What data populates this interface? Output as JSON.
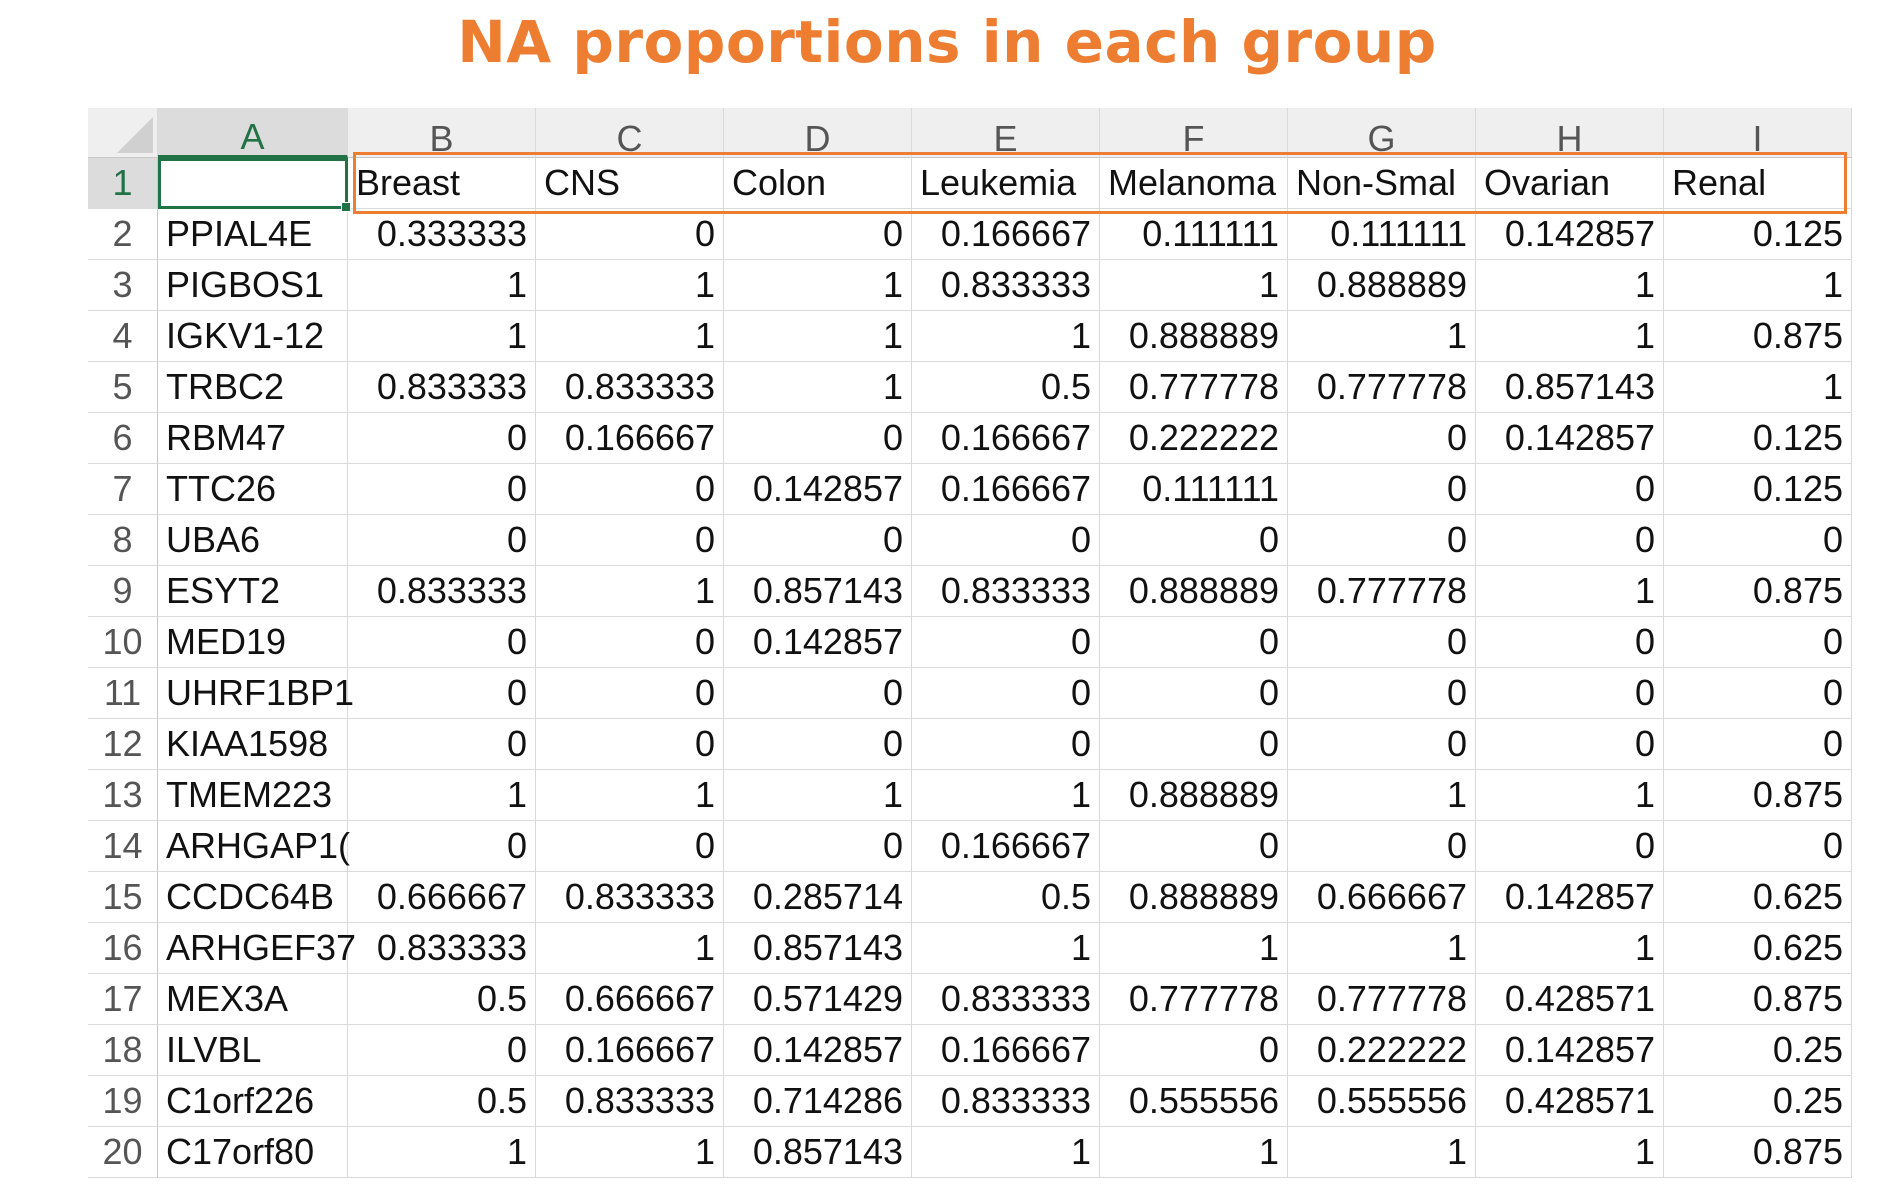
{
  "title": "NA proportions in each group",
  "accent_color": "#ed7d31",
  "selection_color": "#217346",
  "sheet": {
    "column_letters": [
      "A",
      "B",
      "C",
      "D",
      "E",
      "F",
      "G",
      "H",
      "I"
    ],
    "selected_column": "A",
    "active_cell": "A1",
    "row_numbers": [
      "1",
      "2",
      "3",
      "4",
      "5",
      "6",
      "7",
      "8",
      "9",
      "10",
      "11",
      "12",
      "13",
      "14",
      "15",
      "16",
      "17",
      "18",
      "19",
      "20"
    ],
    "header": [
      "",
      "Breast",
      "CNS",
      "Colon",
      "Leukemia",
      "Melanoma",
      "Non-Smal",
      "Ovarian",
      "Renal"
    ],
    "rows": [
      [
        "PPIAL4E",
        "0.333333",
        "0",
        "0",
        "0.166667",
        "0.111111",
        "0.111111",
        "0.142857",
        "0.125"
      ],
      [
        "PIGBOS1",
        "1",
        "1",
        "1",
        "0.833333",
        "1",
        "0.888889",
        "1",
        "1"
      ],
      [
        "IGKV1-12",
        "1",
        "1",
        "1",
        "1",
        "0.888889",
        "1",
        "1",
        "0.875"
      ],
      [
        "TRBC2",
        "0.833333",
        "0.833333",
        "1",
        "0.5",
        "0.777778",
        "0.777778",
        "0.857143",
        "1"
      ],
      [
        "RBM47",
        "0",
        "0.166667",
        "0",
        "0.166667",
        "0.222222",
        "0",
        "0.142857",
        "0.125"
      ],
      [
        "TTC26",
        "0",
        "0",
        "0.142857",
        "0.166667",
        "0.111111",
        "0",
        "0",
        "0.125"
      ],
      [
        "UBA6",
        "0",
        "0",
        "0",
        "0",
        "0",
        "0",
        "0",
        "0"
      ],
      [
        "ESYT2",
        "0.833333",
        "1",
        "0.857143",
        "0.833333",
        "0.888889",
        "0.777778",
        "1",
        "0.875"
      ],
      [
        "MED19",
        "0",
        "0",
        "0.142857",
        "0",
        "0",
        "0",
        "0",
        "0"
      ],
      [
        "UHRF1BP1",
        "0",
        "0",
        "0",
        "0",
        "0",
        "0",
        "0",
        "0"
      ],
      [
        "KIAA1598",
        "0",
        "0",
        "0",
        "0",
        "0",
        "0",
        "0",
        "0"
      ],
      [
        "TMEM223",
        "1",
        "1",
        "1",
        "1",
        "0.888889",
        "1",
        "1",
        "0.875"
      ],
      [
        "ARHGAP1(",
        "0",
        "0",
        "0",
        "0.166667",
        "0",
        "0",
        "0",
        "0"
      ],
      [
        "CCDC64B",
        "0.666667",
        "0.833333",
        "0.285714",
        "0.5",
        "0.888889",
        "0.666667",
        "0.142857",
        "0.625"
      ],
      [
        "ARHGEF37",
        "0.833333",
        "1",
        "0.857143",
        "1",
        "1",
        "1",
        "1",
        "0.625"
      ],
      [
        "MEX3A",
        "0.5",
        "0.666667",
        "0.571429",
        "0.833333",
        "0.777778",
        "0.777778",
        "0.428571",
        "0.875"
      ],
      [
        "ILVBL",
        "0",
        "0.166667",
        "0.142857",
        "0.166667",
        "0",
        "0.222222",
        "0.142857",
        "0.25"
      ],
      [
        "C1orf226",
        "0.5",
        "0.833333",
        "0.714286",
        "0.833333",
        "0.555556",
        "0.555556",
        "0.428571",
        "0.25"
      ],
      [
        "C17orf80",
        "1",
        "1",
        "0.857143",
        "1",
        "1",
        "1",
        "1",
        "0.875"
      ]
    ]
  }
}
